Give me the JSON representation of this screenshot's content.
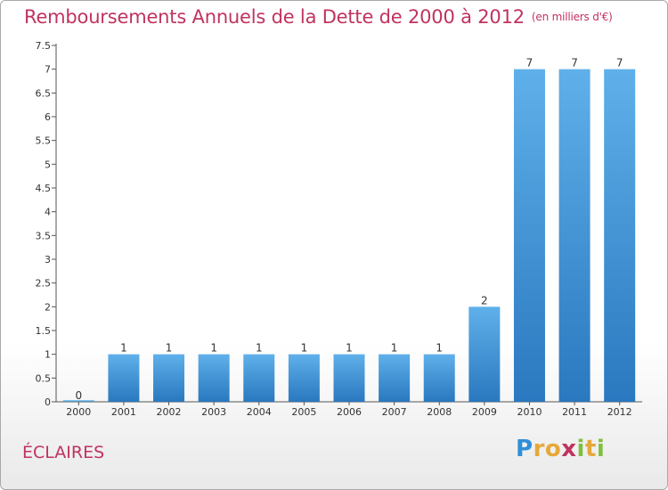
{
  "chart_data": {
    "type": "bar",
    "title": "Remboursements Annuels de la Dette de 2000 à 2012",
    "subtitle": "(en milliers d'€)",
    "categories": [
      "2000",
      "2001",
      "2002",
      "2003",
      "2004",
      "2005",
      "2006",
      "2007",
      "2008",
      "2009",
      "2010",
      "2011",
      "2012"
    ],
    "values": [
      0,
      1,
      1,
      1,
      1,
      1,
      1,
      1,
      1,
      2,
      7,
      7,
      7
    ],
    "data_labels": [
      "0",
      "1",
      "1",
      "1",
      "1",
      "1",
      "1",
      "1",
      "1",
      "2",
      "7",
      "7",
      "7"
    ],
    "yticks": [
      0,
      0.5,
      1,
      1.5,
      2,
      2.5,
      3,
      3.5,
      4,
      4.5,
      5,
      5.5,
      6,
      6.5,
      7,
      7.5
    ],
    "ytick_labels": [
      "0",
      "0.5",
      "1",
      "1.5",
      "2",
      "2.5",
      "3",
      "3.5",
      "4",
      "4.5",
      "5",
      "5.5",
      "6",
      "6.5",
      "7",
      "7.5"
    ],
    "ylim": [
      0,
      7.5
    ],
    "xlabel": "",
    "ylabel": "",
    "grid": false,
    "bar_color": "#3d8fd6",
    "title_color": "#c0335f"
  },
  "footer": {
    "location": "ÉCLAIRES",
    "logo_letters": [
      "P",
      "r",
      "o",
      "x",
      "i",
      "t",
      "i"
    ],
    "logo_colors": [
      "#2f8ed8",
      "#e5a83a",
      "#e5a83a",
      "#c0335f",
      "#7fbf3f",
      "#e5a83a",
      "#7fbf3f"
    ]
  }
}
